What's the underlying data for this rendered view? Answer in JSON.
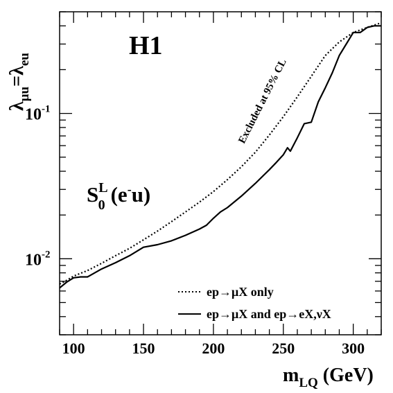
{
  "chart_data": {
    "type": "line",
    "experiment_label": "H1",
    "model": {
      "base": "S",
      "sub": "0",
      "sup": "L",
      "process": "(e",
      "process_sup": "-",
      "process_end": "u)"
    },
    "annotation": "Excluded at 95% CL",
    "xlabel": {
      "main": "m",
      "sub": "LQ",
      "unit": " (GeV)"
    },
    "ylabel": {
      "left": "λ",
      "left_sub": "μu",
      "eq": "=",
      "right": "λ",
      "right_sub": "eu"
    },
    "xlim": [
      90,
      320
    ],
    "ylim": [
      0.003,
      0.5
    ],
    "y_scale": "log",
    "x_ticks": [
      100,
      150,
      200,
      250,
      300
    ],
    "y_ticks": [
      {
        "value": 0.01,
        "base": "10",
        "exp": "-2"
      },
      {
        "value": 0.1,
        "base": "10",
        "exp": "-1"
      }
    ],
    "series": [
      {
        "name": "ep→μX only",
        "style": "dotted",
        "color": "#000000",
        "x": [
          90,
          95,
          100,
          110,
          120,
          130,
          140,
          150,
          160,
          170,
          180,
          190,
          200,
          210,
          220,
          230,
          240,
          250,
          260,
          270,
          280,
          290,
          300,
          310,
          320
        ],
        "y": [
          0.0067,
          0.0071,
          0.0076,
          0.0083,
          0.0093,
          0.0105,
          0.0118,
          0.0135,
          0.0155,
          0.018,
          0.021,
          0.0245,
          0.029,
          0.035,
          0.043,
          0.054,
          0.071,
          0.095,
          0.13,
          0.18,
          0.25,
          0.31,
          0.36,
          0.39,
          0.42
        ]
      },
      {
        "name": "ep→μX and ep→eX,νX",
        "style": "solid",
        "color": "#000000",
        "x": [
          90,
          95,
          100,
          105,
          110,
          120,
          130,
          140,
          150,
          160,
          170,
          180,
          190,
          195,
          200,
          205,
          210,
          220,
          230,
          240,
          245,
          250,
          253,
          255,
          260,
          265,
          270,
          275,
          280,
          285,
          290,
          295,
          300,
          305,
          310,
          315,
          320
        ],
        "y": [
          0.0063,
          0.0069,
          0.0074,
          0.0075,
          0.0075,
          0.0085,
          0.0094,
          0.0105,
          0.012,
          0.0125,
          0.0133,
          0.0145,
          0.016,
          0.017,
          0.019,
          0.021,
          0.0225,
          0.027,
          0.033,
          0.041,
          0.046,
          0.052,
          0.058,
          0.055,
          0.068,
          0.085,
          0.087,
          0.12,
          0.15,
          0.19,
          0.25,
          0.3,
          0.36,
          0.36,
          0.39,
          0.4,
          0.4
        ]
      }
    ],
    "legend_position": "bottom-right",
    "grid": false
  }
}
